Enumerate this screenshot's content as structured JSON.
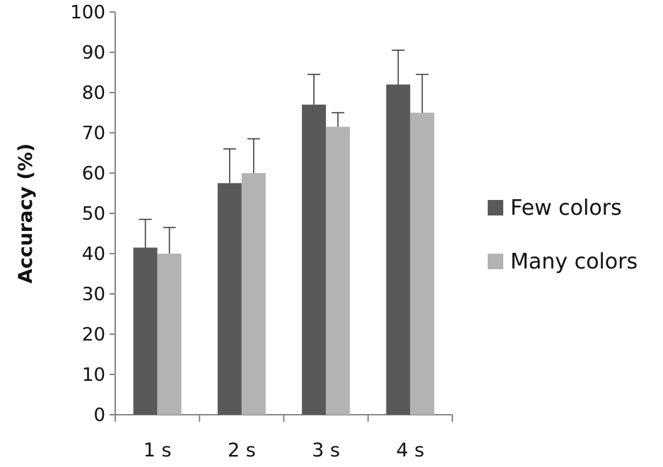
{
  "chart_data": {
    "type": "bar",
    "title": "",
    "xlabel": "",
    "ylabel": "Accuracy (%)",
    "ylim": [
      0,
      100
    ],
    "yticks": [
      0,
      10,
      20,
      30,
      40,
      50,
      60,
      70,
      80,
      90,
      100
    ],
    "categories": [
      "1 s",
      "2 s",
      "3 s",
      "4 s"
    ],
    "series": [
      {
        "name": "Few colors",
        "color": "#595959",
        "values": [
          41.5,
          57.5,
          77,
          82
        ],
        "error_plus": [
          7,
          8.5,
          7.5,
          8.5
        ]
      },
      {
        "name": "Many colors",
        "color": "#b3b3b3",
        "values": [
          40,
          60,
          71.5,
          75
        ],
        "error_plus": [
          6.5,
          8.5,
          3.5,
          9.5
        ]
      }
    ],
    "grid": false,
    "legend_position": "right"
  }
}
